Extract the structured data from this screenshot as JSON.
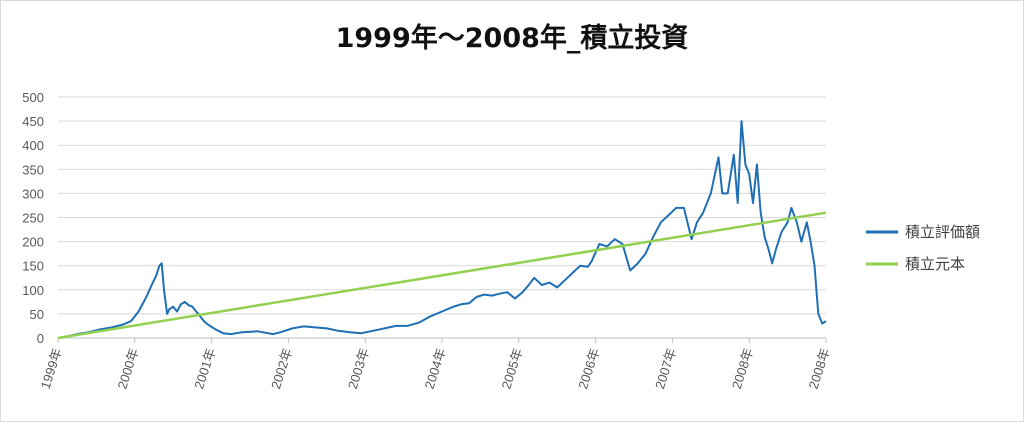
{
  "chart_data": {
    "type": "line",
    "title": "1999年～2008年_積立投資",
    "xlabel": "",
    "ylabel": "",
    "ylim": [
      0,
      500
    ],
    "yticks": [
      0,
      50,
      100,
      150,
      200,
      250,
      300,
      350,
      400,
      450,
      500
    ],
    "xticks": [
      "1999年",
      "2000年",
      "2001年",
      "2002年",
      "2003年",
      "2004年",
      "2005年",
      "2006年",
      "2007年",
      "2008年",
      "2008年"
    ],
    "xrange": [
      1999.0,
      2009.0
    ],
    "grid": true,
    "legend_position": "right",
    "series": [
      {
        "name": "積立評価額",
        "color": "#1f6fb4",
        "x": [
          1999.0,
          1999.1,
          1999.25,
          1999.4,
          1999.55,
          1999.7,
          1999.85,
          1999.95,
          2000.05,
          2000.15,
          2000.22,
          2000.28,
          2000.32,
          2000.35,
          2000.38,
          2000.42,
          2000.45,
          2000.5,
          2000.55,
          2000.6,
          2000.65,
          2000.7,
          2000.75,
          2000.8,
          2000.85,
          2000.9,
          2000.95,
          2001.05,
          2001.15,
          2001.25,
          2001.4,
          2001.6,
          2001.8,
          2001.9,
          2002.05,
          2002.2,
          2002.35,
          2002.5,
          2002.65,
          2002.8,
          2002.95,
          2003.1,
          2003.25,
          2003.4,
          2003.55,
          2003.7,
          2003.85,
          2004.0,
          2004.15,
          2004.25,
          2004.35,
          2004.45,
          2004.55,
          2004.65,
          2004.75,
          2004.85,
          2004.95,
          2005.05,
          2005.12,
          2005.2,
          2005.3,
          2005.4,
          2005.5,
          2005.6,
          2005.7,
          2005.8,
          2005.9,
          2005.95,
          2006.05,
          2006.15,
          2006.25,
          2006.35,
          2006.45,
          2006.55,
          2006.65,
          2006.75,
          2006.85,
          2006.95,
          2007.05,
          2007.15,
          2007.25,
          2007.32,
          2007.4,
          2007.5,
          2007.6,
          2007.65,
          2007.72,
          2007.8,
          2007.85,
          2007.9,
          2007.95,
          2008.0,
          2008.05,
          2008.1,
          2008.15,
          2008.2,
          2008.25,
          2008.3,
          2008.35,
          2008.42,
          2008.5,
          2008.55,
          2008.62,
          2008.68,
          2008.75,
          2008.8,
          2008.85,
          2008.9,
          2008.95,
          2009.0
        ],
        "values": [
          0,
          3,
          8,
          12,
          18,
          22,
          28,
          35,
          55,
          85,
          110,
          130,
          150,
          155,
          100,
          50,
          60,
          65,
          55,
          70,
          75,
          68,
          65,
          55,
          45,
          35,
          28,
          18,
          10,
          8,
          12,
          14,
          8,
          12,
          20,
          24,
          22,
          20,
          15,
          12,
          10,
          15,
          20,
          25,
          25,
          32,
          45,
          55,
          65,
          70,
          72,
          85,
          90,
          88,
          92,
          95,
          82,
          95,
          108,
          125,
          110,
          115,
          105,
          120,
          135,
          150,
          148,
          160,
          195,
          190,
          205,
          195,
          140,
          155,
          175,
          210,
          240,
          255,
          270,
          270,
          205,
          240,
          260,
          300,
          375,
          300,
          300,
          380,
          280,
          450,
          360,
          340,
          280,
          360,
          260,
          210,
          185,
          155,
          185,
          220,
          240,
          270,
          240,
          200,
          240,
          200,
          150,
          50,
          30,
          35
        ]
      },
      {
        "name": "積立元本",
        "color": "#92d050",
        "x": [
          1999.0,
          2009.0
        ],
        "values": [
          0,
          260
        ]
      }
    ]
  }
}
